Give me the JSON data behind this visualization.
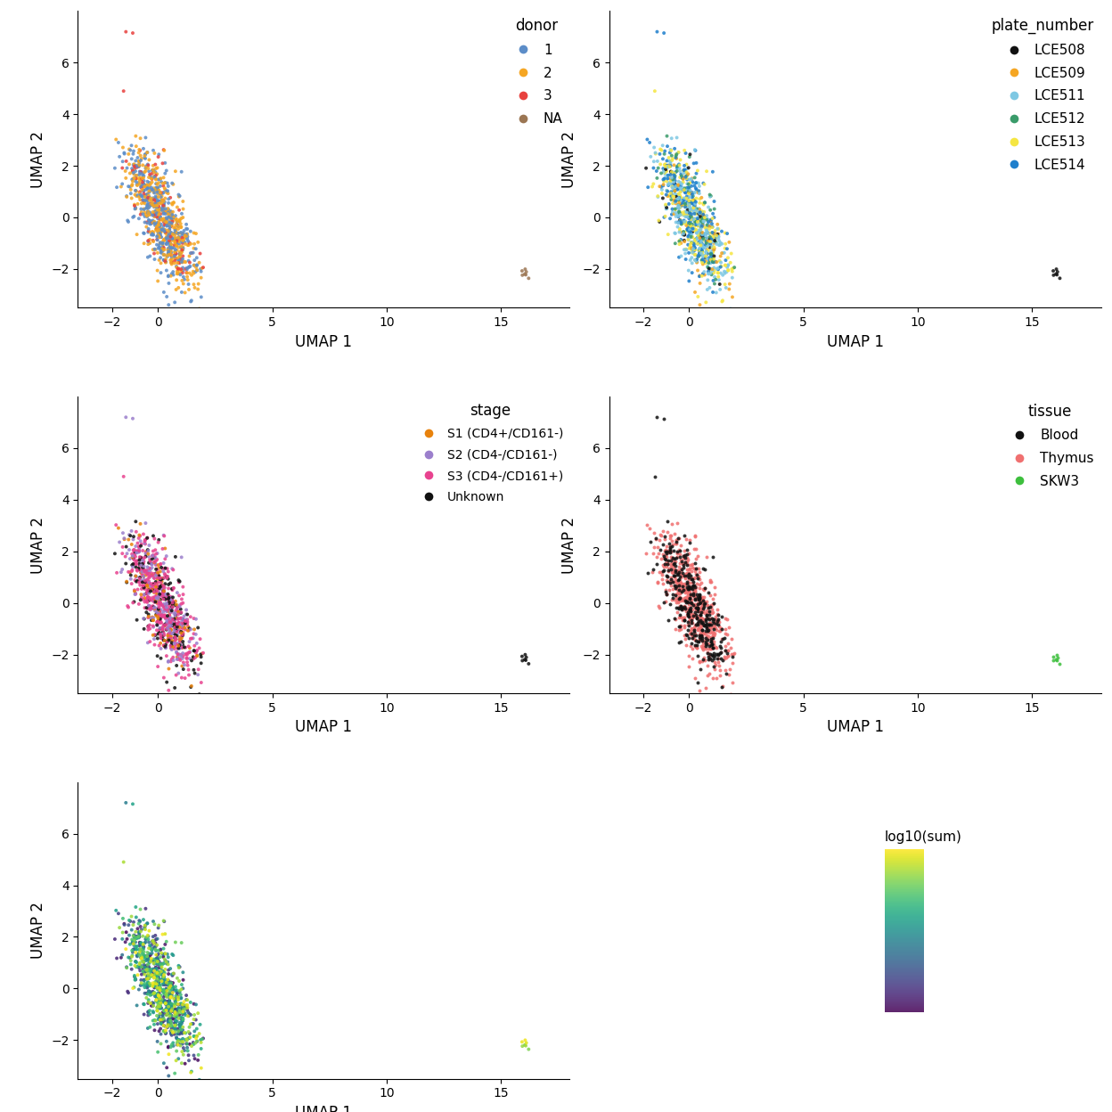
{
  "xlabel": "UMAP 1",
  "ylabel": "UMAP 2",
  "xlim": [
    -3.5,
    18
  ],
  "ylim": [
    -3.5,
    8.0
  ],
  "xticks": [
    -2,
    0,
    5,
    10,
    15
  ],
  "yticks": [
    -2,
    0,
    2,
    4,
    6
  ],
  "donor_colors": {
    "1": "#5C8DC8",
    "2": "#F5A623",
    "3": "#E8413E",
    "NA": "#9B7653"
  },
  "plate_colors": {
    "LCE508": "#111111",
    "LCE509": "#F5A623",
    "LCE511": "#7EC8E3",
    "LCE512": "#3A9B6A",
    "LCE513": "#F5E642",
    "LCE514": "#1E7FCC"
  },
  "stage_colors": {
    "S1 (CD4+/CD161-)": "#E8820C",
    "S2 (CD4-/CD161-)": "#9B7FCC",
    "S3 (CD4-/CD161+)": "#E8438F",
    "Unknown": "#111111"
  },
  "tissue_colors": {
    "Blood": "#111111",
    "Thymus": "#F07070",
    "SKW3": "#3DBF3D"
  },
  "colormap": "viridis",
  "cbar_label": "log10(sum)",
  "cbar_ticks": [
    2.8,
    3.2,
    3.6,
    4.0
  ],
  "cbar_vmin": 2.6,
  "cbar_vmax": 4.2,
  "seed": 42,
  "n_main": 900,
  "n_outlier": 7,
  "point_size": 8,
  "alpha": 0.85
}
